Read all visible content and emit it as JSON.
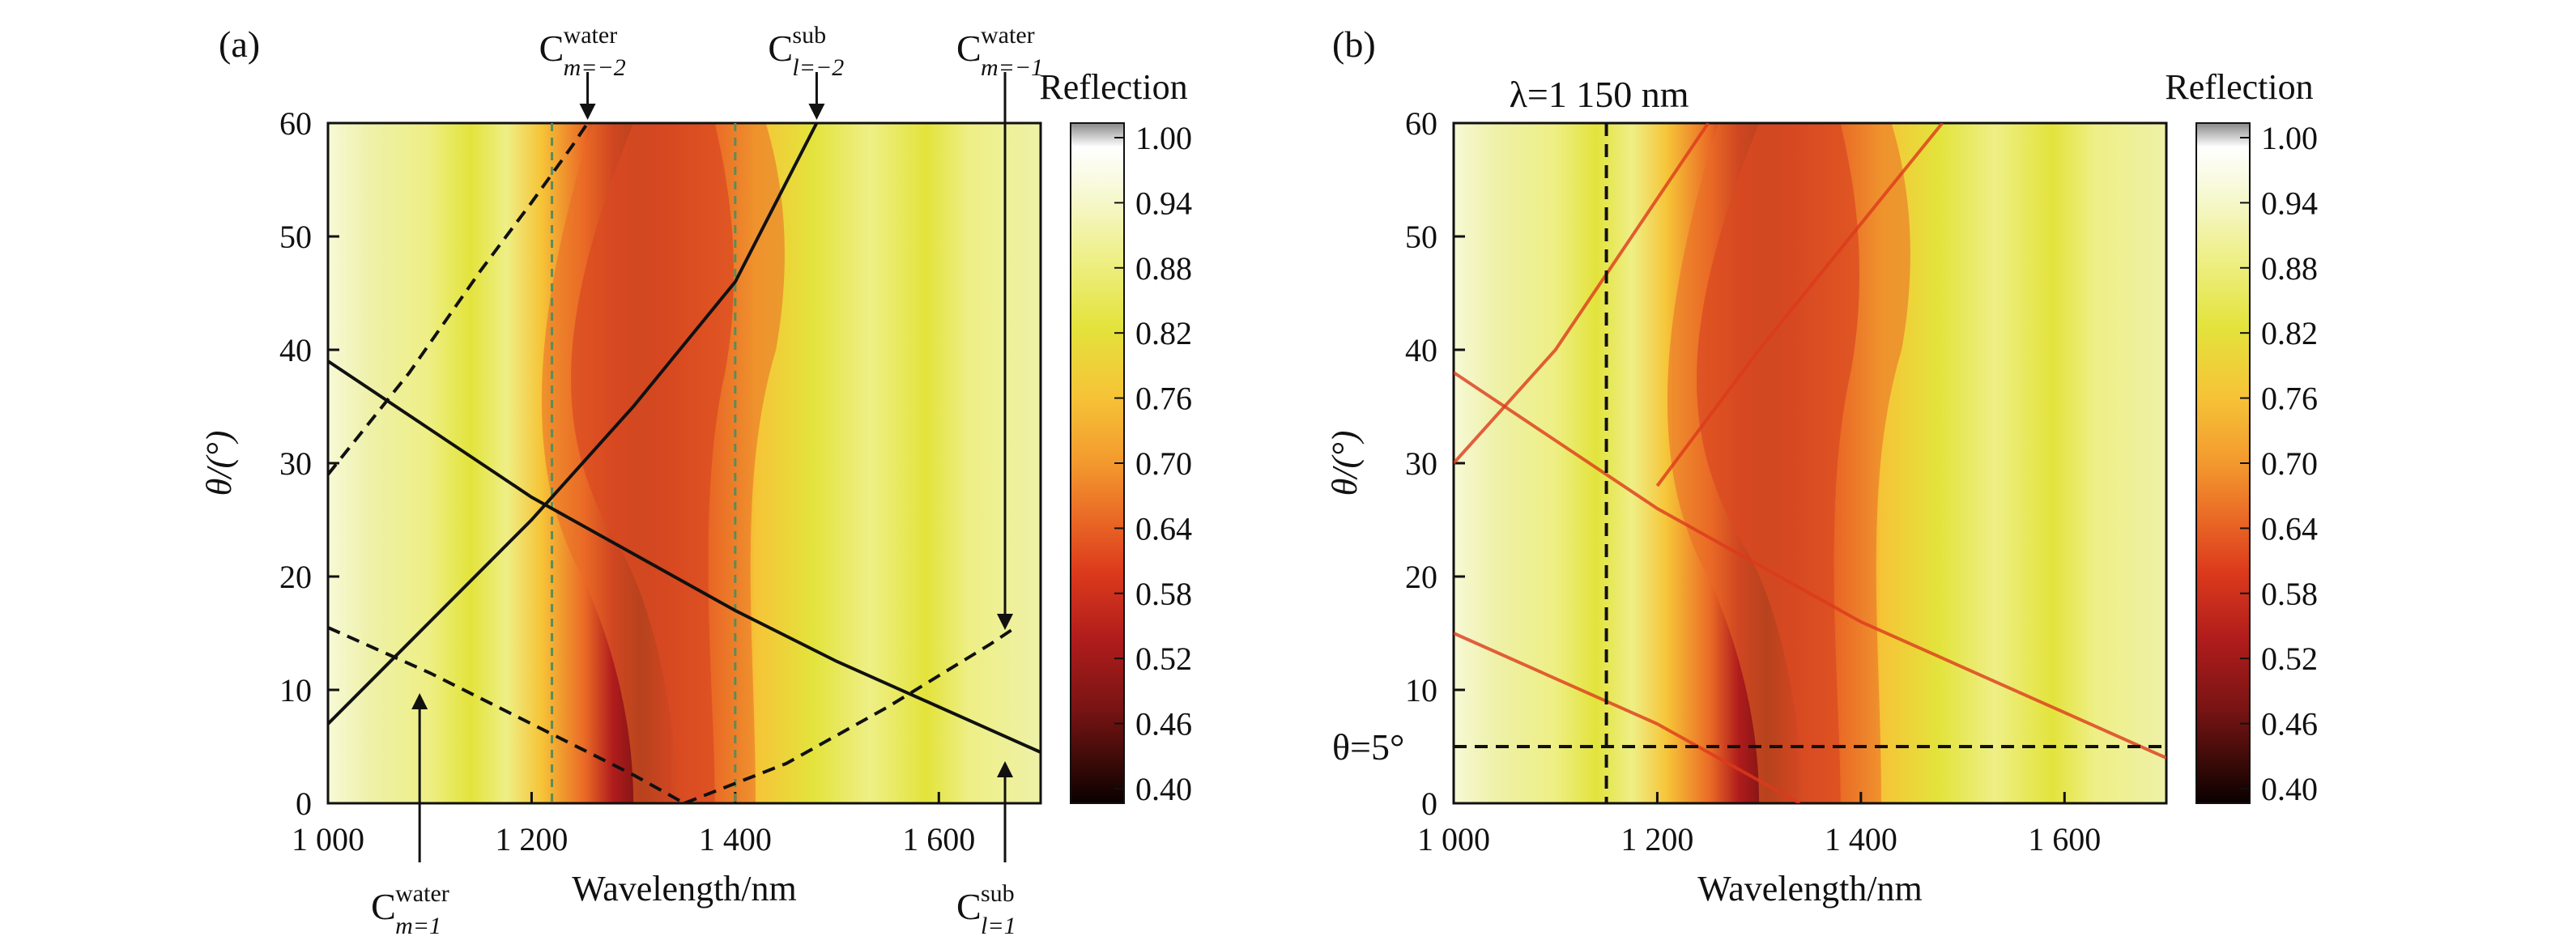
{
  "chart_data": [
    {
      "panel": "(a)",
      "type": "heatmap",
      "xlabel": "Wavelength/nm",
      "ylabel": "θ/(°)",
      "xlim": [
        1000,
        1700
      ],
      "ylim": [
        0,
        60
      ],
      "xticks": [
        "1 000",
        "1 200",
        "1 400",
        "1 600"
      ],
      "xtick_values": [
        1000,
        1200,
        1400,
        1600
      ],
      "yticks": [
        0,
        10,
        20,
        30,
        40,
        50,
        60
      ],
      "colorbar": {
        "title": "Reflection",
        "min": 0.4,
        "max": 1.0,
        "labels": [
          "1.00",
          "0.94",
          "0.88",
          "0.82",
          "0.76",
          "0.70",
          "0.64",
          "0.58",
          "0.52",
          "0.46",
          "0.40"
        ]
      },
      "solid_curves": [
        {
          "points": [
            [
              1000,
              7
            ],
            [
              1100,
              16
            ],
            [
              1200,
              25
            ],
            [
              1300,
              35
            ],
            [
              1400,
              46
            ],
            [
              1480,
              60
            ]
          ]
        },
        {
          "points": [
            [
              1000,
              39
            ],
            [
              1100,
              33
            ],
            [
              1200,
              27
            ],
            [
              1300,
              22
            ],
            [
              1400,
              17
            ],
            [
              1500,
              12.5
            ],
            [
              1600,
              8.5
            ],
            [
              1700,
              4.5
            ]
          ]
        }
      ],
      "dashed_curves": [
        {
          "points": [
            [
              1000,
              29
            ],
            [
              1080,
              38
            ],
            [
              1150,
              47
            ],
            [
              1200,
              53
            ],
            [
              1240,
              58
            ],
            [
              1255,
              60
            ]
          ]
        },
        {
          "points": [
            [
              1000,
              15.5
            ],
            [
              1100,
              11.5
            ],
            [
              1200,
              7
            ],
            [
              1300,
              2.5
            ],
            [
              1350,
              0
            ]
          ]
        },
        {
          "points": [
            [
              1350,
              0
            ],
            [
              1450,
              3.5
            ],
            [
              1550,
              8.5
            ],
            [
              1650,
              14
            ],
            [
              1675,
              15.5
            ]
          ]
        }
      ],
      "vertical_dashed_lines": [
        1220,
        1400
      ],
      "annotations": [
        {
          "base": "C",
          "sup": "water",
          "sub": "m=−2",
          "x": 1255,
          "y": 60,
          "position": "top"
        },
        {
          "base": "C",
          "sup": "sub",
          "sub": "l=−2",
          "x": 1480,
          "y": 60,
          "position": "top"
        },
        {
          "base": "C",
          "sup": "water",
          "sub": "m=−1",
          "x": 1665,
          "y": 15,
          "position": "top"
        },
        {
          "base": "C",
          "sup": "water",
          "sub": "m=1",
          "x": 1090,
          "y": 10,
          "position": "bottom"
        },
        {
          "base": "C",
          "sup": "sub",
          "sub": "l=1",
          "x": 1665,
          "y": 4,
          "position": "bottom"
        }
      ]
    },
    {
      "panel": "(b)",
      "type": "heatmap",
      "xlabel": "Wavelength/nm",
      "ylabel": "θ/(°)",
      "xlim": [
        1000,
        1700
      ],
      "ylim": [
        0,
        60
      ],
      "xticks": [
        "1 000",
        "1 200",
        "1 400",
        "1 600"
      ],
      "xtick_values": [
        1000,
        1200,
        1400,
        1600
      ],
      "yticks": [
        0,
        10,
        20,
        30,
        40,
        50,
        60
      ],
      "colorbar": {
        "title": "Reflection",
        "min": 0.4,
        "max": 1.0,
        "labels": [
          "1.00",
          "0.94",
          "0.88",
          "0.82",
          "0.76",
          "0.70",
          "0.64",
          "0.58",
          "0.52",
          "0.46",
          "0.40"
        ]
      },
      "marker_lines": [
        {
          "orientation": "vertical",
          "value": 1150,
          "label": "λ=1 150 nm"
        },
        {
          "orientation": "horizontal",
          "value": 5,
          "label": "θ=5°"
        }
      ]
    }
  ],
  "colors": {
    "colormap": [
      "#0a0000",
      "#3a0a08",
      "#7a1414",
      "#b01c1c",
      "#dc3a1c",
      "#ea6a26",
      "#f3992e",
      "#f6c437",
      "#e3e33c",
      "#eeef86",
      "#f7f9d6",
      "#ffffff"
    ],
    "background_field": "#eef08a"
  }
}
